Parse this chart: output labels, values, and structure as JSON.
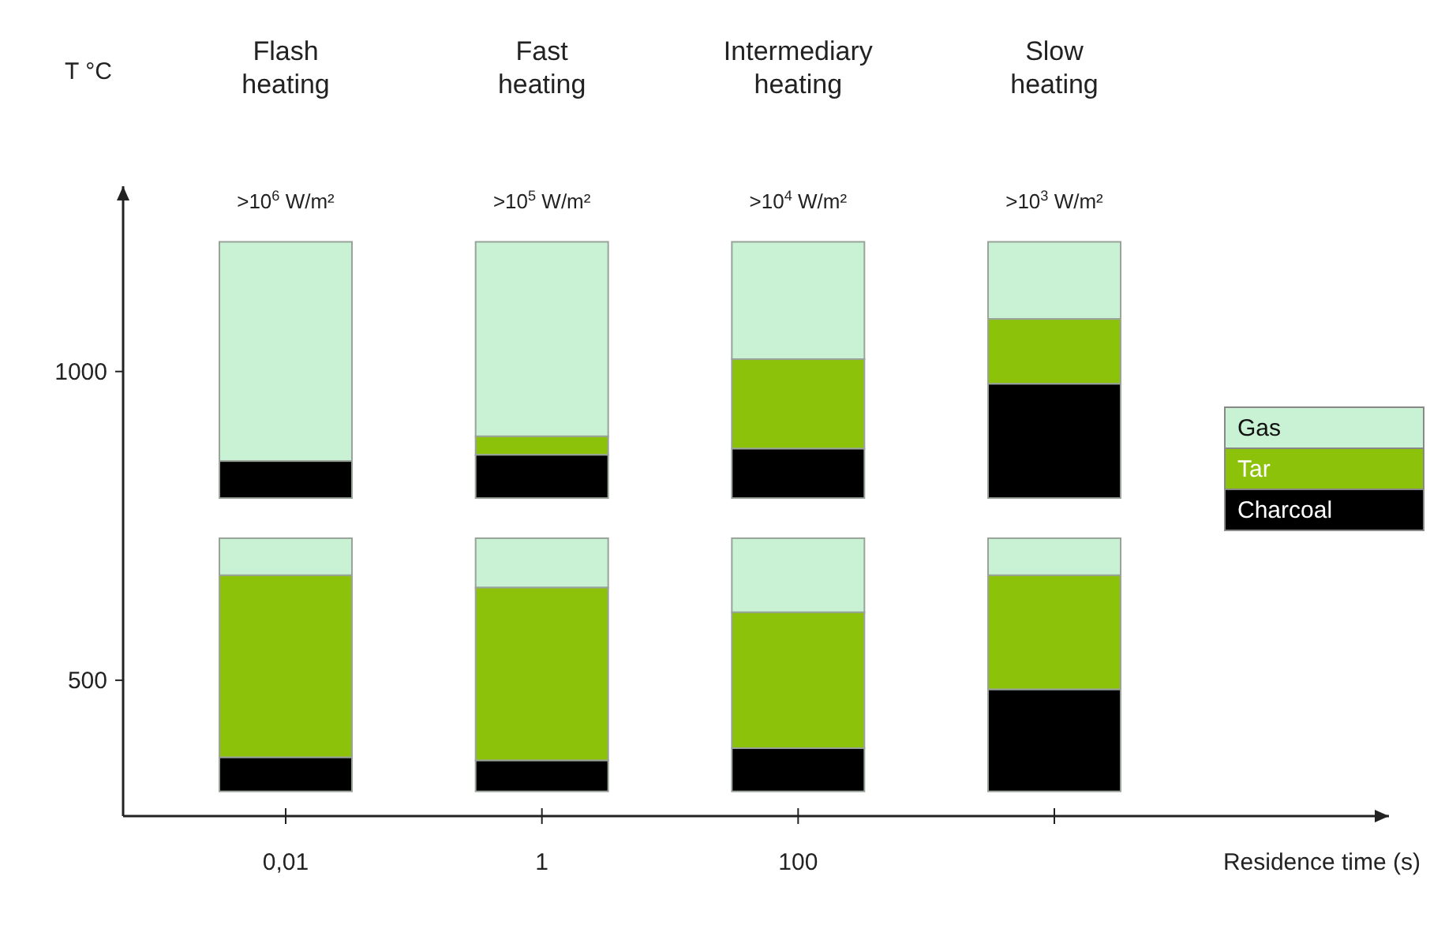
{
  "chart_data": {
    "type": "bar",
    "ylabel": "T °C",
    "xlabel": "Residence time (s)",
    "categories": [
      "0,01",
      "1",
      "100",
      null
    ],
    "ylim": [
      280,
      1300
    ],
    "yticks": [
      500,
      1000
    ],
    "legend": "right",
    "grid": false,
    "annotations": [
      "Flash\nheating",
      "Fast\nheating",
      "Intermediary\nheating",
      "Slow\nheating",
      ">10$^{6}$ W/m²",
      ">10$^{5}$ W/m²",
      ">10$^{4}$ W/m²",
      ">10$^{3}$ W/m²"
    ],
    "series": [
      {
        "name": "Gas",
        "color": "#c9f2d4",
        "base": [
          855,
          895,
          1020,
          1085
        ],
        "values": [
          355,
          315,
          190,
          125
        ]
      },
      {
        "name": "Tar",
        "color": "#8cc20a",
        "base": [
          null,
          865,
          875,
          980
        ],
        "values": [
          null,
          30,
          145,
          105
        ]
      },
      {
        "name": "Charcoal",
        "color": "#000000",
        "base": [
          795,
          795,
          795,
          795
        ],
        "values": [
          60,
          70,
          80,
          185
        ]
      },
      {
        "color": "#c9f2d4",
        "base": [
          670,
          650,
          610,
          670
        ],
        "values": [
          60,
          80,
          120,
          60
        ]
      },
      {
        "color": "#8cc20a",
        "base": [
          375,
          370,
          390,
          485
        ],
        "values": [
          295,
          280,
          220,
          185
        ]
      },
      {
        "color": "#000000",
        "base": [
          320,
          320,
          320,
          320
        ],
        "values": [
          55,
          50,
          70,
          165
        ]
      }
    ]
  }
}
